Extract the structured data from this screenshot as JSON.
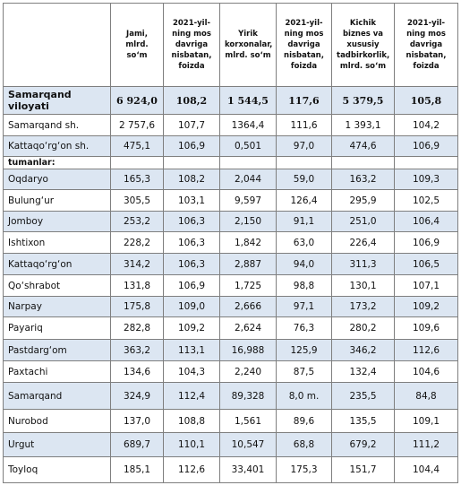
{
  "table": {
    "columns": [
      "Jami, mlrd. so‘m",
      "2021-yil-ning mos davriga nisbatan, foizda",
      "Yirik korxonalar, mlrd. so‘m",
      "2021-yil-ning mos davriga nisbatan, foizda",
      "Kichik biznes va xususiy tadbirkorlik, mlrd. so‘m",
      "2021-yil-ning mos davriga nisbatan, foizda"
    ],
    "rows": [
      [
        "Samarqand viloyati",
        "6 924,0",
        "108,2",
        "1 544,5",
        "117,6",
        "5 379,5",
        "105,8"
      ],
      [
        "Samarqand sh.",
        "2 757,6",
        "107,7",
        "1364,4",
        "111,6",
        "1 393,1",
        "104,2"
      ],
      [
        "Kattaqo‘rg‘on sh.",
        "475,1",
        "106,9",
        "0,501",
        "97,0",
        "474,6",
        "106,9"
      ],
      [
        "tumanlar:"
      ],
      [
        "Oqdaryo",
        "165,3",
        "108,2",
        "2,044",
        "59,0",
        "163,2",
        "109,3"
      ],
      [
        "Bulung‘ur",
        "305,5",
        "103,1",
        "9,597",
        "126,4",
        "295,9",
        "102,5"
      ],
      [
        "Jomboy",
        "253,2",
        "106,3",
        "2,150",
        "91,1",
        "251,0",
        "106,4"
      ],
      [
        "Ishtixon",
        "228,2",
        "106,3",
        "1,842",
        "63,0",
        "226,4",
        "106,9"
      ],
      [
        "Kattaqo‘rg‘on",
        "314,2",
        "106,3",
        "2,887",
        "94,0",
        "311,3",
        "106,5"
      ],
      [
        "Qo‘shrabot",
        "131,8",
        "106,9",
        "1,725",
        "98,8",
        "130,1",
        "107,1"
      ],
      [
        "Narpay",
        "175,8",
        "109,0",
        "2,666",
        "97,1",
        "173,2",
        "109,2"
      ],
      [
        "Payariq",
        "282,8",
        "109,2",
        "2,624",
        "76,3",
        "280,2",
        "109,6"
      ],
      [
        "Pastdarg‘om",
        "363,2",
        "113,1",
        "16,988",
        "125,9",
        "346,2",
        "112,6"
      ],
      [
        "Paxtachi",
        "134,6",
        "104,3",
        "2,240",
        "87,5",
        "132,4",
        "104,6"
      ],
      [
        "Samarqand",
        "324,9",
        "112,4",
        "89,328",
        "8,0 m.",
        "235,5",
        "84,8"
      ],
      [
        "Nurobod",
        "137,0",
        "108,8",
        "1,561",
        "89,6",
        "135,5",
        "109,1"
      ],
      [
        "Urgut",
        "689,7",
        "110,1",
        "10,547",
        "68,8",
        "679,2",
        "111,2"
      ],
      [
        "Toyloq",
        "185,1",
        "112,6",
        "33,401",
        "175,3",
        "151,7",
        "104,4"
      ]
    ]
  }
}
